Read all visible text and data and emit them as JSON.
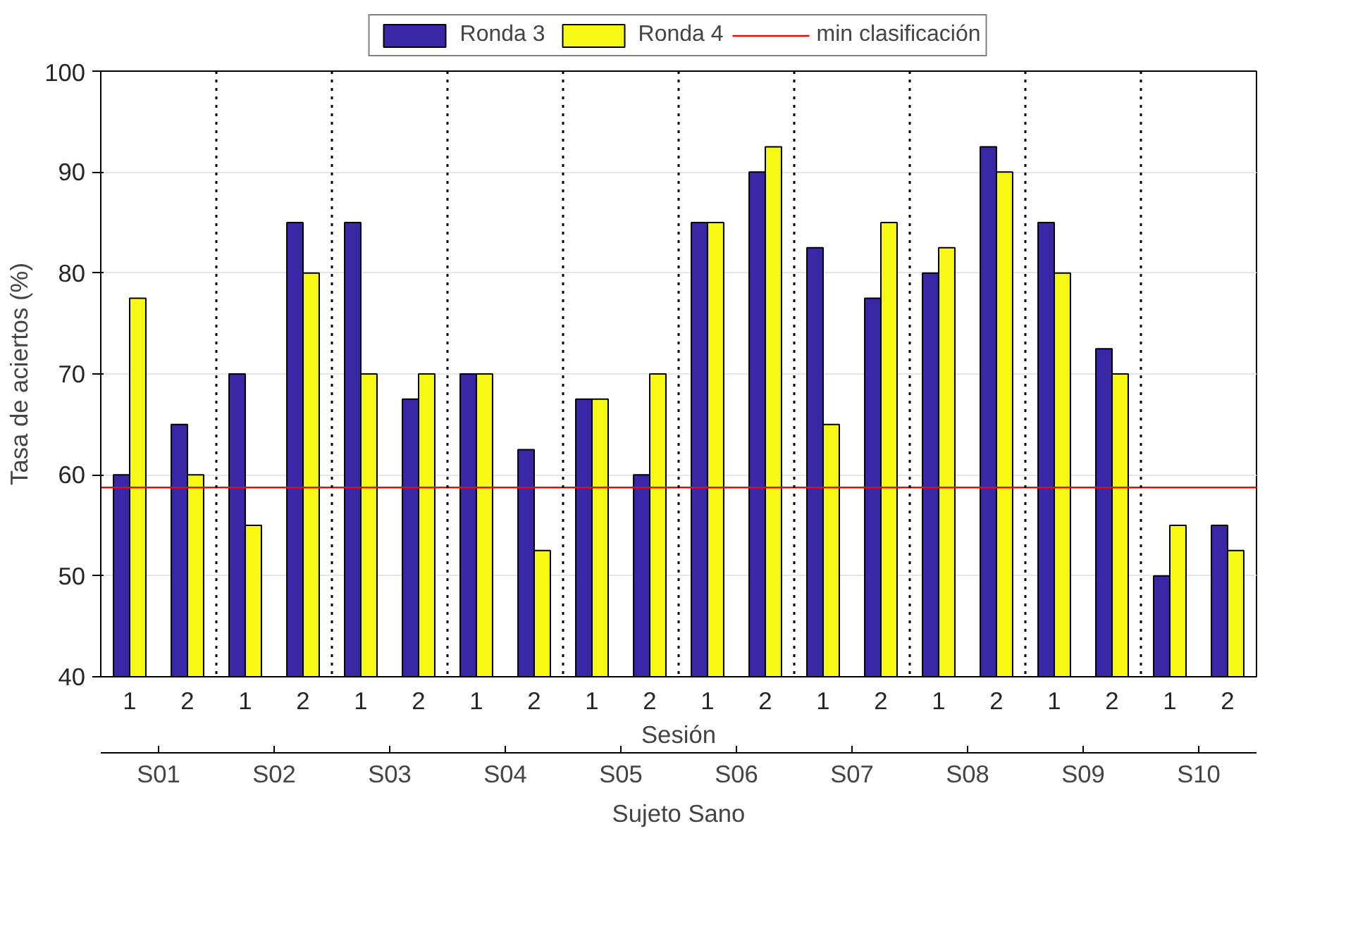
{
  "chart_data": {
    "type": "bar",
    "categories": [
      "1",
      "2",
      "1",
      "2",
      "1",
      "2",
      "1",
      "2",
      "1",
      "2",
      "1",
      "2",
      "1",
      "2",
      "1",
      "2",
      "1",
      "2",
      "1",
      "2"
    ],
    "series": [
      {
        "name": "Ronda 3",
        "color": "#3a27a6",
        "values": [
          60,
          65,
          70,
          85,
          85,
          67.5,
          70,
          62.5,
          67.5,
          60,
          85,
          90,
          82.5,
          77.5,
          80,
          92.5,
          85,
          72.5,
          50,
          55
        ]
      },
      {
        "name": "Ronda 4",
        "color": "#f7f714",
        "values": [
          77.5,
          60,
          55,
          80,
          70,
          70,
          70,
          52.5,
          67.5,
          70,
          85,
          92.5,
          65,
          85,
          82.5,
          90,
          80,
          70,
          55,
          52.5
        ]
      }
    ],
    "ref_lines": [
      {
        "axis": "y",
        "value": 58.75,
        "label": "min clasificación",
        "color": "#ff0000",
        "line_style": "solid"
      }
    ],
    "annotations": [
      "S01",
      "S02",
      "S03",
      "S04",
      "S05",
      "S06",
      "S07",
      "S08",
      "S09",
      "S10"
    ],
    "xlabel": "Sesión",
    "x2label": "Sujeto Sano",
    "ylabel": "Tasa de aciertos (%)",
    "ylim": [
      40,
      100
    ],
    "yticks": [
      40,
      50,
      60,
      70,
      80,
      90,
      100
    ],
    "grid": "y",
    "legend": "top"
  }
}
